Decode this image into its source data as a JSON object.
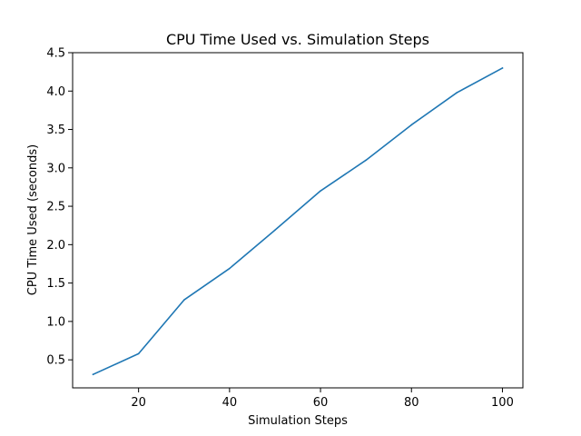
{
  "chart_data": {
    "type": "line",
    "title": "CPU Time Used vs. Simulation Steps",
    "xlabel": "Simulation Steps",
    "ylabel": "CPU Time Used (seconds)",
    "xlim": [
      5.5,
      104.5
    ],
    "ylim": [
      0.135,
      4.5
    ],
    "xticks": [
      20,
      40,
      60,
      80,
      100
    ],
    "yticks": [
      0.5,
      1.0,
      1.5,
      2.0,
      2.5,
      3.0,
      3.5,
      4.0,
      4.5
    ],
    "xtick_labels": [
      "20",
      "40",
      "60",
      "80",
      "100"
    ],
    "ytick_labels": [
      "0.5",
      "1.0",
      "1.5",
      "2.0",
      "2.5",
      "3.0",
      "3.5",
      "4.0",
      "4.5"
    ],
    "grid": false,
    "legend": false,
    "series": [
      {
        "color": "#1f77b4",
        "x": [
          10,
          20,
          30,
          40,
          50,
          60,
          70,
          80,
          90,
          100
        ],
        "y": [
          0.31,
          0.58,
          1.28,
          1.69,
          2.19,
          2.7,
          3.1,
          3.56,
          3.98,
          4.3
        ]
      }
    ]
  }
}
